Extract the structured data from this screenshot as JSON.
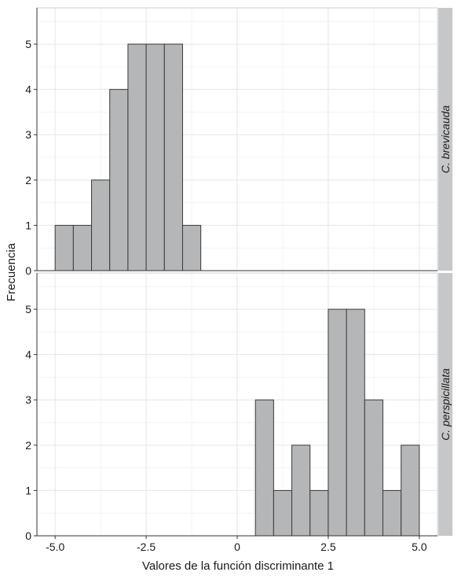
{
  "chart_data": {
    "type": "bar",
    "subtype": "faceted-histogram",
    "xlabel": "Valores de la función discriminante 1",
    "ylabel": "Frecuencia",
    "x_tick_labels": [
      "-5.0",
      "-2.5",
      "0",
      "2.5",
      "5.0"
    ],
    "x_ticks": [
      -5.0,
      -2.5,
      0,
      2.5,
      5.0
    ],
    "y_ticks": [
      0,
      1,
      2,
      3,
      4,
      5
    ],
    "xlim": [
      -5.5,
      5.5
    ],
    "ylim": [
      0,
      5.8
    ],
    "bin_width": 0.5,
    "grid": true,
    "bar_fill": "#b5b6b8",
    "bar_stroke": "#3a3a3a",
    "strip_fill": "#c6c7c9",
    "facets": [
      {
        "label": "C. brevicauda",
        "bins": [
          {
            "x0": -5.0,
            "x1": -4.5,
            "count": 1
          },
          {
            "x0": -4.5,
            "x1": -4.0,
            "count": 1
          },
          {
            "x0": -4.0,
            "x1": -3.5,
            "count": 2
          },
          {
            "x0": -3.5,
            "x1": -3.0,
            "count": 4
          },
          {
            "x0": -3.0,
            "x1": -2.5,
            "count": 5
          },
          {
            "x0": -2.5,
            "x1": -2.0,
            "count": 5
          },
          {
            "x0": -2.0,
            "x1": -1.5,
            "count": 5
          },
          {
            "x0": -1.5,
            "x1": -1.0,
            "count": 1
          }
        ]
      },
      {
        "label": "C. perspicillata",
        "bins": [
          {
            "x0": 0.5,
            "x1": 1.0,
            "count": 3
          },
          {
            "x0": 1.0,
            "x1": 1.5,
            "count": 1
          },
          {
            "x0": 1.5,
            "x1": 2.0,
            "count": 2
          },
          {
            "x0": 2.0,
            "x1": 2.5,
            "count": 1
          },
          {
            "x0": 2.5,
            "x1": 3.0,
            "count": 5
          },
          {
            "x0": 3.0,
            "x1": 3.5,
            "count": 5
          },
          {
            "x0": 3.5,
            "x1": 4.0,
            "count": 3
          },
          {
            "x0": 4.0,
            "x1": 4.5,
            "count": 1
          },
          {
            "x0": 4.5,
            "x1": 5.0,
            "count": 2
          }
        ]
      }
    ]
  }
}
